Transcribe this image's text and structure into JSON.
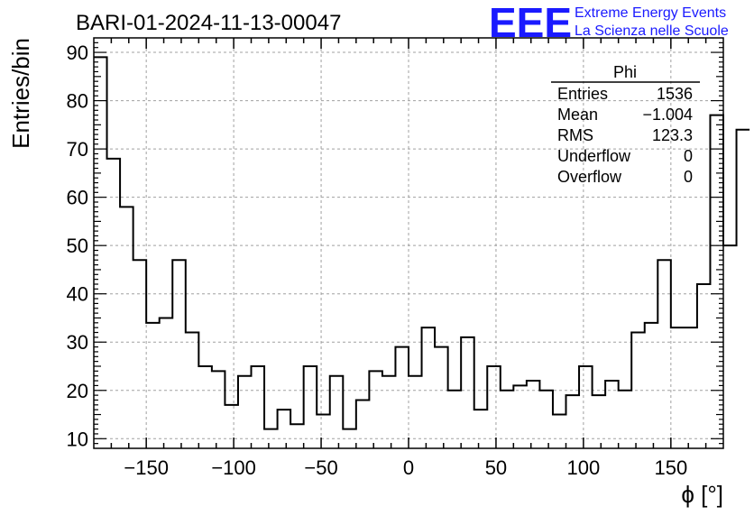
{
  "branding": {
    "logo_text": "EEE",
    "line1": "Extreme Energy Events",
    "line2": "La Scienza nelle Scuole",
    "color": "#1a1aff"
  },
  "stats": {
    "name": "Phi",
    "rows": [
      {
        "label": "Entries",
        "value": "1536"
      },
      {
        "label": "Mean",
        "value": "−1.004"
      },
      {
        "label": "RMS",
        "value": "123.3"
      },
      {
        "label": "Underflow",
        "value": "0"
      },
      {
        "label": "Overflow",
        "value": "0"
      }
    ]
  },
  "chart_data": {
    "type": "bar",
    "title": "BARI-01-2024-11-13-00047",
    "xlabel": "ϕ [°]",
    "ylabel": "Entries/bin",
    "xlim": [
      -180,
      180
    ],
    "ylim": [
      8,
      93
    ],
    "bin_width": 7.5,
    "x_ticks": [
      -150,
      -100,
      -50,
      0,
      50,
      100,
      150
    ],
    "x_tick_labels": [
      "−150",
      "−100",
      "−50",
      "0",
      "50",
      "100",
      "150"
    ],
    "y_ticks": [
      10,
      20,
      30,
      40,
      50,
      60,
      70,
      80,
      90
    ],
    "y_tick_labels": [
      "10",
      "20",
      "30",
      "40",
      "50",
      "60",
      "70",
      "80",
      "90"
    ],
    "grid": true,
    "values": [
      89,
      68,
      58,
      47,
      34,
      35,
      47,
      32,
      25,
      24,
      17,
      23,
      25,
      12,
      16,
      13,
      25,
      15,
      23,
      12,
      18,
      24,
      23,
      29,
      23,
      33,
      29,
      20,
      31,
      16,
      25,
      20,
      21,
      22,
      20,
      15,
      19,
      25,
      19,
      22,
      20,
      32,
      34,
      47,
      33,
      33,
      42,
      77,
      50,
      74
    ]
  }
}
